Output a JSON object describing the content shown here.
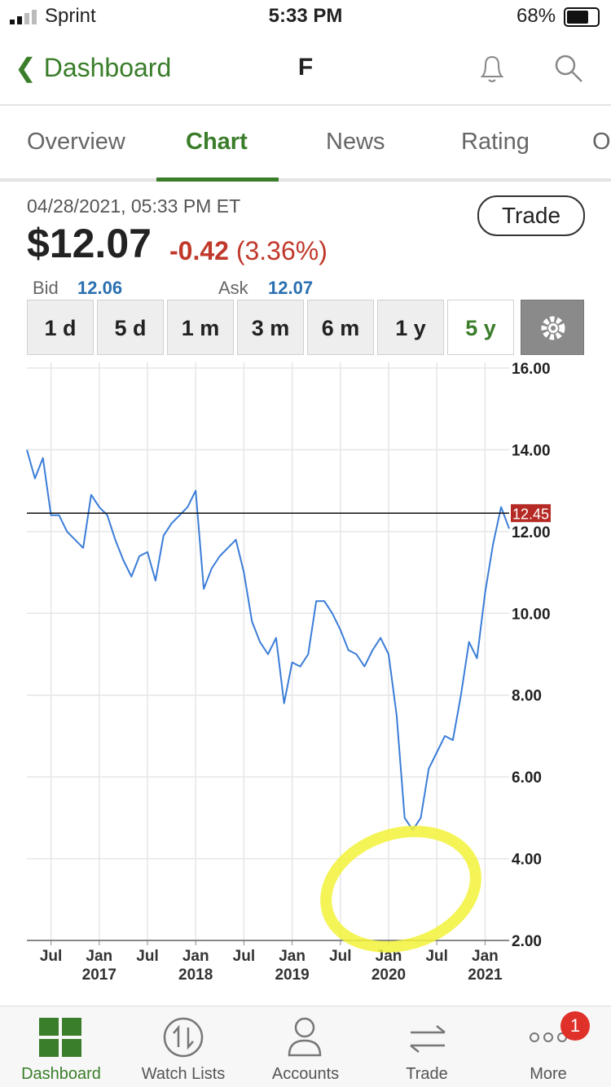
{
  "status_bar": {
    "carrier": "Sprint",
    "time": "5:33 PM",
    "battery": "68%"
  },
  "nav": {
    "back": "Dashboard",
    "symbol": "F"
  },
  "tabs": [
    "Overview",
    "Chart",
    "News",
    "Rating",
    "O"
  ],
  "quote": {
    "timestamp": "04/28/2021, 05:33 PM ET",
    "price": "$12.07",
    "change": "-0.42",
    "change_pct": "(3.36%)",
    "bid_label": "Bid",
    "bid": "12.06",
    "ask_label": "Ask",
    "ask": "12.07",
    "trade": "Trade"
  },
  "ranges": [
    "1 d",
    "5 d",
    "1 m",
    "3 m",
    "6 m",
    "1 y",
    "5 y"
  ],
  "chart_data": {
    "type": "line",
    "x": [
      "2016-04",
      "2016-05",
      "2016-06",
      "2016-07",
      "2016-08",
      "2016-09",
      "2016-10",
      "2016-11",
      "2016-12",
      "2017-01",
      "2017-02",
      "2017-03",
      "2017-04",
      "2017-05",
      "2017-06",
      "2017-07",
      "2017-08",
      "2017-09",
      "2017-10",
      "2017-11",
      "2017-12",
      "2018-01",
      "2018-02",
      "2018-03",
      "2018-04",
      "2018-05",
      "2018-06",
      "2018-07",
      "2018-08",
      "2018-09",
      "2018-10",
      "2018-11",
      "2018-12",
      "2019-01",
      "2019-02",
      "2019-03",
      "2019-04",
      "2019-05",
      "2019-06",
      "2019-07",
      "2019-08",
      "2019-09",
      "2019-10",
      "2019-11",
      "2019-12",
      "2020-01",
      "2020-02",
      "2020-03",
      "2020-04",
      "2020-05",
      "2020-06",
      "2020-07",
      "2020-08",
      "2020-09",
      "2020-10",
      "2020-11",
      "2020-12",
      "2021-01",
      "2021-02",
      "2021-03",
      "2021-04"
    ],
    "values": [
      14.0,
      13.3,
      13.8,
      12.4,
      12.4,
      12.0,
      11.8,
      11.6,
      12.9,
      12.6,
      12.4,
      11.8,
      11.3,
      10.9,
      11.4,
      11.5,
      10.8,
      11.9,
      12.2,
      12.4,
      12.6,
      13.0,
      10.6,
      11.1,
      11.4,
      11.6,
      11.8,
      11.0,
      9.8,
      9.3,
      9.0,
      9.4,
      7.8,
      8.8,
      8.7,
      9.0,
      10.3,
      10.3,
      10.0,
      9.6,
      9.1,
      9.0,
      8.7,
      9.1,
      9.4,
      9.0,
      7.5,
      5.0,
      4.7,
      5.0,
      6.2,
      6.6,
      7.0,
      6.9,
      8.0,
      9.3,
      8.9,
      10.5,
      11.7,
      12.6,
      12.07
    ],
    "color": "#3b7dd8",
    "xlim": [
      "2016-04",
      "2021-04"
    ],
    "xticks": [
      {
        "value": "2016-07",
        "label": "Jul"
      },
      {
        "value": "2017-01",
        "label": "Jan 2017"
      },
      {
        "value": "2017-07",
        "label": "Jul"
      },
      {
        "value": "2018-01",
        "label": "Jan 2018"
      },
      {
        "value": "2018-07",
        "label": "Jul"
      },
      {
        "value": "2019-01",
        "label": "Jan 2019"
      },
      {
        "value": "2019-07",
        "label": "Jul"
      },
      {
        "value": "2020-01",
        "label": "Jan 2020"
      },
      {
        "value": "2020-07",
        "label": "Jul"
      },
      {
        "value": "2021-01",
        "label": "Jan 2021"
      }
    ],
    "ylim": [
      2,
      16
    ],
    "yticks": [
      {
        "value": 2,
        "label": "2.00"
      },
      {
        "value": 4,
        "label": "4.00"
      },
      {
        "value": 6,
        "label": "6.00"
      },
      {
        "value": 8,
        "label": "8.00"
      },
      {
        "value": 10,
        "label": "10.00"
      },
      {
        "value": 12,
        "label": "12.00"
      },
      {
        "value": 14,
        "label": "14.00"
      },
      {
        "value": 16,
        "label": "16.00"
      }
    ],
    "reference_value": 12.45,
    "grid": true
  },
  "bottom_nav": {
    "items": [
      "Dashboard",
      "Watch Lists",
      "Accounts",
      "Trade",
      "More"
    ],
    "badge": "1"
  }
}
